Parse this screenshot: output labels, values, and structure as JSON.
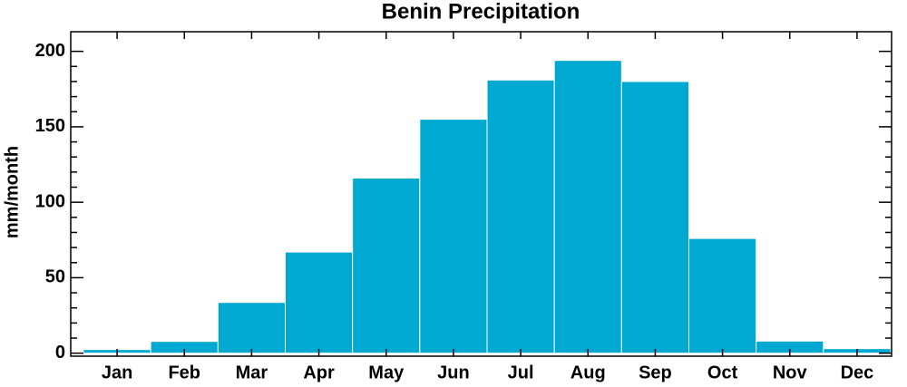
{
  "chart_data": {
    "type": "bar",
    "title": "Benin Precipitation",
    "y_label": "mm/month",
    "categories": [
      "Jan",
      "Feb",
      "Mar",
      "Apr",
      "May",
      "Jun",
      "Jul",
      "Aug",
      "Sep",
      "Oct",
      "Nov",
      "Dec"
    ],
    "values": [
      2.4,
      7.8,
      33.6,
      67,
      116,
      155,
      181,
      194,
      180,
      76,
      8,
      3
    ],
    "color": "#00a9d1",
    "ylim": [
      -2,
      213
    ],
    "yticks": [
      0,
      50,
      100,
      150,
      200
    ],
    "grid": false
  }
}
